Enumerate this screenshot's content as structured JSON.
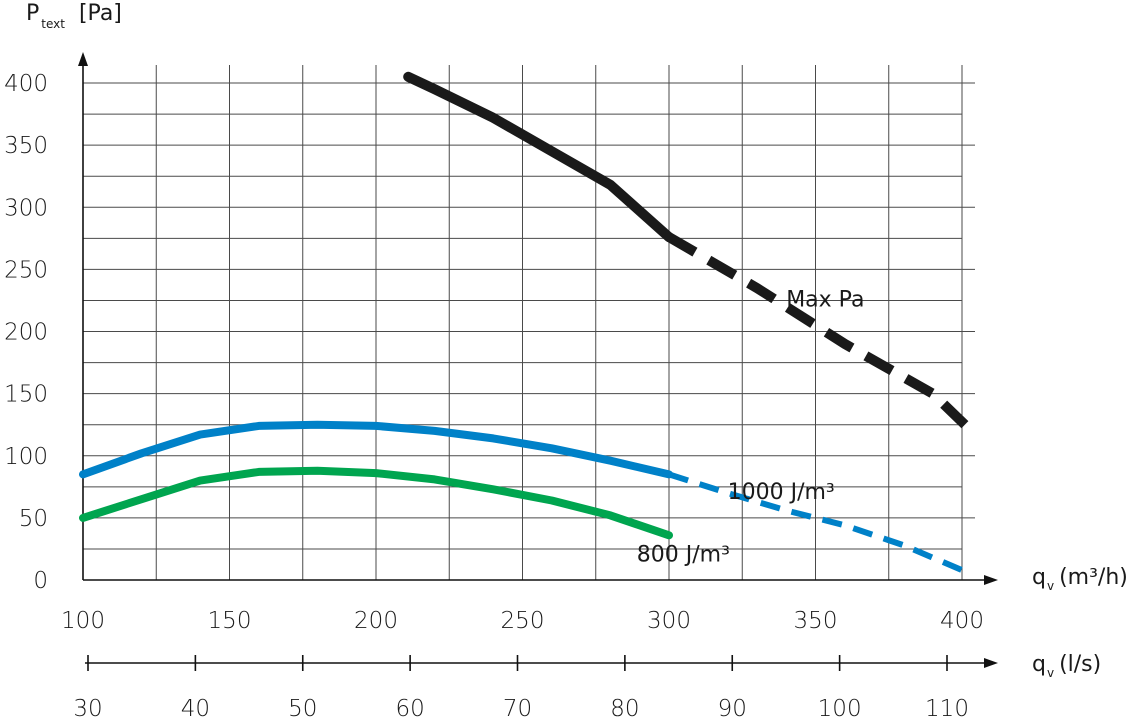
{
  "chart_data": {
    "type": "line",
    "ylabel": "P",
    "ylabel_sub": "text",
    "ylabel_unit": "[Pa]",
    "xlabel_main": "q",
    "xlabel_main_sub": "v",
    "xlabel_main_unit": "(m³/h)",
    "xlabel_secondary": "q",
    "xlabel_secondary_sub": "v",
    "xlabel_secondary_unit": "(l/s)",
    "xlim": [
      100,
      400
    ],
    "ylim": [
      0,
      400
    ],
    "x_ticks": [
      "100",
      "150",
      "200",
      "250",
      "300",
      "350",
      "400"
    ],
    "y_ticks": [
      "0",
      "50",
      "100",
      "150",
      "200",
      "250",
      "300",
      "350",
      "400"
    ],
    "ls_ticks": [
      "30",
      "40",
      "50",
      "60",
      "70",
      "80",
      "90",
      "100",
      "110"
    ],
    "grid": true,
    "series": [
      {
        "name": "Max Pa",
        "color": "#1a1a1a",
        "solid": [
          [
            211,
            405
          ],
          [
            220,
            395
          ],
          [
            240,
            372
          ],
          [
            260,
            345
          ],
          [
            280,
            318
          ],
          [
            300,
            276
          ]
        ],
        "dashed": [
          [
            300,
            276
          ],
          [
            330,
            235
          ],
          [
            360,
            190
          ],
          [
            390,
            150
          ],
          [
            401,
            125
          ]
        ]
      },
      {
        "name": "1000 J/m³",
        "color": "#0081c8",
        "solid": [
          [
            100,
            85
          ],
          [
            120,
            102
          ],
          [
            140,
            117
          ],
          [
            160,
            124
          ],
          [
            180,
            125
          ],
          [
            200,
            124
          ],
          [
            220,
            120
          ],
          [
            240,
            114
          ],
          [
            260,
            106
          ],
          [
            280,
            96
          ],
          [
            300,
            85
          ]
        ],
        "dashed": [
          [
            300,
            85
          ],
          [
            320,
            70
          ],
          [
            340,
            56
          ],
          [
            360,
            44
          ],
          [
            380,
            28
          ],
          [
            400,
            8
          ]
        ]
      },
      {
        "name": "800 J/m³",
        "color": "#00a54f",
        "solid": [
          [
            100,
            50
          ],
          [
            120,
            65
          ],
          [
            140,
            80
          ],
          [
            160,
            87
          ],
          [
            180,
            88
          ],
          [
            200,
            86
          ],
          [
            220,
            81
          ],
          [
            240,
            73
          ],
          [
            260,
            64
          ],
          [
            280,
            52
          ],
          [
            300,
            36
          ]
        ],
        "dashed": []
      }
    ],
    "annotations": [
      {
        "text": "Max Pa",
        "at": [
          340,
          220
        ]
      },
      {
        "text": "1000 J/m³",
        "at": [
          320,
          65
        ]
      },
      {
        "text": "800 J/m³",
        "at": [
          289,
          15
        ]
      }
    ]
  }
}
